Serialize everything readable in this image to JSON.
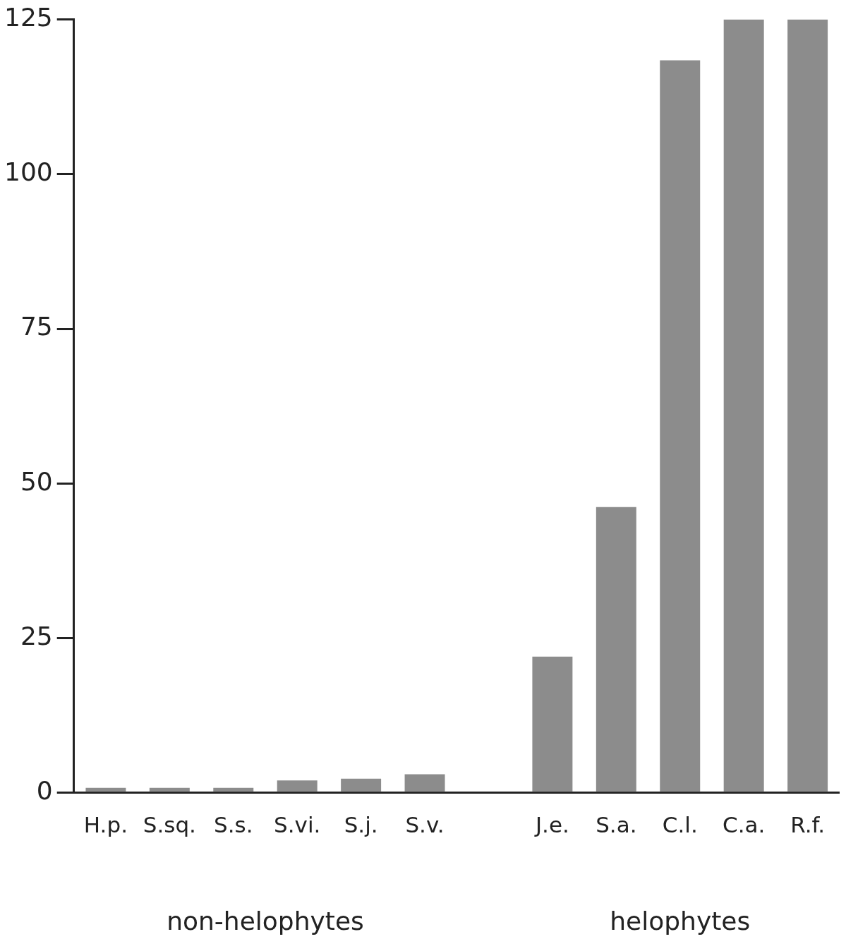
{
  "chart_data": {
    "type": "bar",
    "categories": [
      "H.p.",
      "S.sq.",
      "S.s.",
      "S.vi.",
      "S.j.",
      "S.v.",
      null,
      "J.e.",
      "S.a.",
      "C.l.",
      "C.a.",
      "R.f."
    ],
    "values": [
      0.8,
      0.8,
      0.8,
      2,
      2.3,
      3,
      null,
      22,
      46.2,
      118.4,
      125,
      125
    ],
    "color": "#8c8c8c",
    "ylim": [
      0,
      125
    ],
    "yticks": [
      0,
      25,
      50,
      75,
      100,
      125
    ],
    "grid": false,
    "legend": false,
    "annotations": [
      "non-helophytes",
      "helophytes"
    ]
  }
}
